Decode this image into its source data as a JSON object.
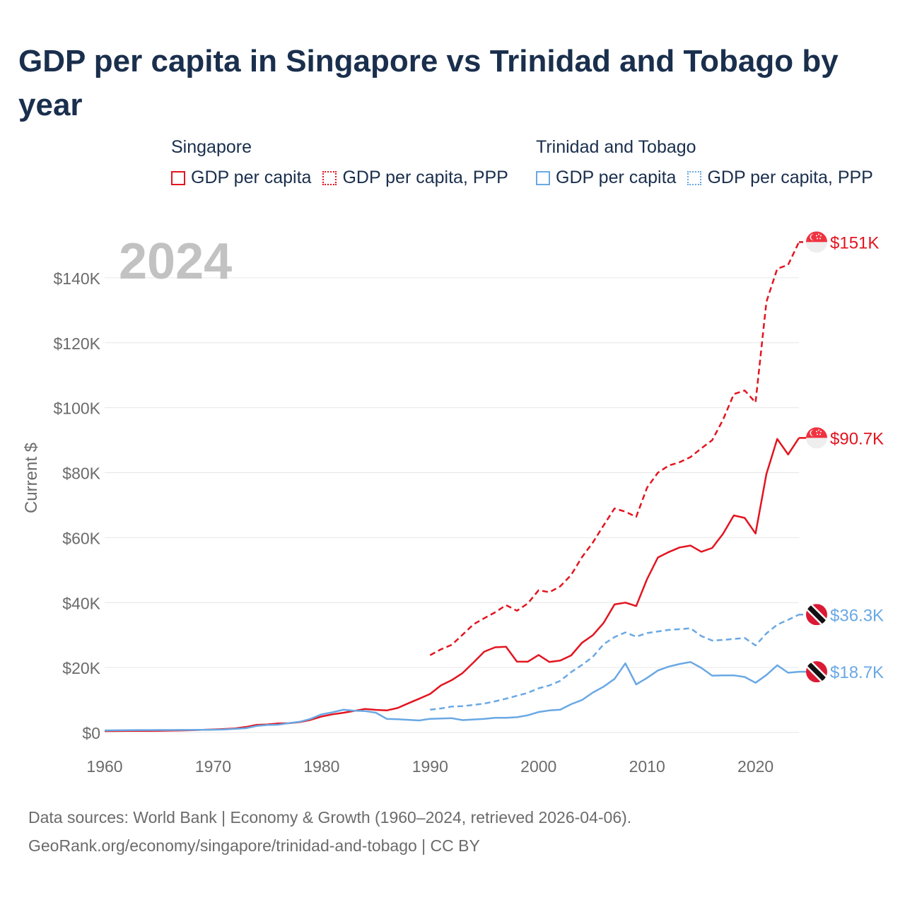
{
  "colors": {
    "singapore": "#e3141f",
    "trinidad": "#6aa8e4",
    "title": "#1a2f4d",
    "axis_text": "#6b6b6b",
    "grid": "#e6e6e6",
    "year_watermark": "#c2c2c2"
  },
  "legend": {
    "groups": [
      {
        "country": "Singapore",
        "series": [
          {
            "label": "GDP per capita",
            "style": "solid"
          },
          {
            "label": "GDP per capita, PPP",
            "style": "dotted"
          }
        ]
      },
      {
        "country": "Trinidad and Tobago",
        "series": [
          {
            "label": "GDP per capita",
            "style": "solid"
          },
          {
            "label": "GDP per capita, PPP",
            "style": "dotted"
          }
        ]
      }
    ]
  },
  "footer": {
    "line1": "Data sources: World Bank | Economy & Growth (1960–2024, retrieved 2026-04-06).",
    "line2": "GeoRank.org/economy/singapore/trinidad-and-tobago | CC BY"
  },
  "chart_data": {
    "type": "line",
    "title": "GDP per capita in Singapore vs Trinidad and Tobago by year",
    "year_label": "2024",
    "ylabel": "Current $",
    "xlabel": "",
    "xlim": [
      1960,
      2024
    ],
    "ylim": [
      0,
      150000
    ],
    "x_ticks": [
      1960,
      1970,
      1980,
      1990,
      2000,
      2010,
      2020
    ],
    "y_ticks": [
      0,
      20000,
      40000,
      60000,
      80000,
      100000,
      120000,
      140000
    ],
    "y_tick_labels": [
      "$0",
      "$20K",
      "$40K",
      "$60K",
      "$80K",
      "$100K",
      "$120K",
      "$140K"
    ],
    "series": [
      {
        "name": "Singapore GDP per capita",
        "country": "Singapore",
        "style": "solid",
        "end_label": "$90.7K",
        "points": [
          [
            1960,
            428
          ],
          [
            1961,
            449
          ],
          [
            1962,
            472
          ],
          [
            1963,
            511
          ],
          [
            1964,
            485
          ],
          [
            1965,
            517
          ],
          [
            1966,
            567
          ],
          [
            1967,
            627
          ],
          [
            1968,
            708
          ],
          [
            1969,
            812
          ],
          [
            1970,
            925
          ],
          [
            1971,
            1071
          ],
          [
            1972,
            1264
          ],
          [
            1973,
            1685
          ],
          [
            1974,
            2342
          ],
          [
            1975,
            2490
          ],
          [
            1976,
            2766
          ],
          [
            1977,
            2846
          ],
          [
            1978,
            3194
          ],
          [
            1979,
            3901
          ],
          [
            1980,
            4928
          ],
          [
            1981,
            5596
          ],
          [
            1982,
            6078
          ],
          [
            1983,
            6633
          ],
          [
            1984,
            7239
          ],
          [
            1985,
            6970
          ],
          [
            1986,
            6800
          ],
          [
            1987,
            7540
          ],
          [
            1988,
            9000
          ],
          [
            1989,
            10400
          ],
          [
            1990,
            11860
          ],
          [
            1991,
            14500
          ],
          [
            1992,
            16140
          ],
          [
            1993,
            18300
          ],
          [
            1994,
            21550
          ],
          [
            1995,
            24900
          ],
          [
            1996,
            26230
          ],
          [
            1997,
            26380
          ],
          [
            1998,
            21830
          ],
          [
            1999,
            21800
          ],
          [
            2000,
            23850
          ],
          [
            2001,
            21700
          ],
          [
            2002,
            22160
          ],
          [
            2003,
            23730
          ],
          [
            2004,
            27600
          ],
          [
            2005,
            29960
          ],
          [
            2006,
            33770
          ],
          [
            2007,
            39430
          ],
          [
            2008,
            40000
          ],
          [
            2009,
            38930
          ],
          [
            2010,
            47240
          ],
          [
            2011,
            53890
          ],
          [
            2012,
            55550
          ],
          [
            2013,
            56970
          ],
          [
            2014,
            57560
          ],
          [
            2015,
            55650
          ],
          [
            2016,
            56830
          ],
          [
            2017,
            61180
          ],
          [
            2018,
            66840
          ],
          [
            2019,
            66070
          ],
          [
            2020,
            61270
          ],
          [
            2021,
            79600
          ],
          [
            2022,
            90400
          ],
          [
            2023,
            85600
          ],
          [
            2024,
            90700
          ]
        ]
      },
      {
        "name": "Singapore GDP per capita, PPP",
        "country": "Singapore",
        "style": "dashed",
        "end_label": "$151K",
        "points": [
          [
            1990,
            23800
          ],
          [
            1991,
            25600
          ],
          [
            1992,
            27000
          ],
          [
            1993,
            30100
          ],
          [
            1994,
            33300
          ],
          [
            1995,
            35200
          ],
          [
            1996,
            37000
          ],
          [
            1997,
            39200
          ],
          [
            1998,
            37500
          ],
          [
            1999,
            39700
          ],
          [
            2000,
            43800
          ],
          [
            2001,
            43200
          ],
          [
            2002,
            45000
          ],
          [
            2003,
            48500
          ],
          [
            2004,
            54000
          ],
          [
            2005,
            58500
          ],
          [
            2006,
            63800
          ],
          [
            2007,
            69000
          ],
          [
            2008,
            68000
          ],
          [
            2009,
            66400
          ],
          [
            2010,
            75400
          ],
          [
            2011,
            80000
          ],
          [
            2012,
            82200
          ],
          [
            2013,
            83200
          ],
          [
            2014,
            84800
          ],
          [
            2015,
            87500
          ],
          [
            2016,
            90000
          ],
          [
            2017,
            96300
          ],
          [
            2018,
            104200
          ],
          [
            2019,
            105300
          ],
          [
            2020,
            101600
          ],
          [
            2021,
            132600
          ],
          [
            2022,
            142800
          ],
          [
            2023,
            144000
          ],
          [
            2024,
            151000
          ]
        ]
      },
      {
        "name": "Trinidad and Tobago GDP per capita",
        "country": "Trinidad and Tobago",
        "style": "solid",
        "end_label": "$18.7K",
        "points": [
          [
            1960,
            631
          ],
          [
            1961,
            678
          ],
          [
            1962,
            703
          ],
          [
            1963,
            735
          ],
          [
            1964,
            746
          ],
          [
            1965,
            757
          ],
          [
            1966,
            763
          ],
          [
            1967,
            790
          ],
          [
            1968,
            784
          ],
          [
            1969,
            824
          ],
          [
            1970,
            858
          ],
          [
            1971,
            904
          ],
          [
            1972,
            1100
          ],
          [
            1973,
            1300
          ],
          [
            1974,
            2000
          ],
          [
            1975,
            2300
          ],
          [
            1976,
            2400
          ],
          [
            1977,
            2900
          ],
          [
            1978,
            3300
          ],
          [
            1979,
            4200
          ],
          [
            1980,
            5600
          ],
          [
            1981,
            6200
          ],
          [
            1982,
            7000
          ],
          [
            1983,
            6700
          ],
          [
            1984,
            6600
          ],
          [
            1985,
            6100
          ],
          [
            1986,
            4200
          ],
          [
            1987,
            4100
          ],
          [
            1988,
            3900
          ],
          [
            1989,
            3700
          ],
          [
            1990,
            4200
          ],
          [
            1991,
            4300
          ],
          [
            1992,
            4400
          ],
          [
            1993,
            3800
          ],
          [
            1994,
            4000
          ],
          [
            1995,
            4200
          ],
          [
            1996,
            4500
          ],
          [
            1997,
            4500
          ],
          [
            1998,
            4700
          ],
          [
            1999,
            5300
          ],
          [
            2000,
            6300
          ],
          [
            2001,
            6800
          ],
          [
            2002,
            7000
          ],
          [
            2003,
            8700
          ],
          [
            2004,
            10000
          ],
          [
            2005,
            12300
          ],
          [
            2006,
            14100
          ],
          [
            2007,
            16500
          ],
          [
            2008,
            21300
          ],
          [
            2009,
            14800
          ],
          [
            2010,
            16800
          ],
          [
            2011,
            19100
          ],
          [
            2012,
            20300
          ],
          [
            2013,
            21100
          ],
          [
            2014,
            21700
          ],
          [
            2015,
            19900
          ],
          [
            2016,
            17500
          ],
          [
            2017,
            17600
          ],
          [
            2018,
            17600
          ],
          [
            2019,
            17100
          ],
          [
            2020,
            15300
          ],
          [
            2021,
            17700
          ],
          [
            2022,
            20700
          ],
          [
            2023,
            18400
          ],
          [
            2024,
            18700
          ]
        ]
      },
      {
        "name": "Trinidad and Tobago GDP per capita, PPP",
        "country": "Trinidad and Tobago",
        "style": "dashed",
        "end_label": "$36.3K",
        "points": [
          [
            1990,
            7000
          ],
          [
            1991,
            7400
          ],
          [
            1992,
            8000
          ],
          [
            1993,
            8100
          ],
          [
            1994,
            8500
          ],
          [
            1995,
            8900
          ],
          [
            1996,
            9600
          ],
          [
            1997,
            10400
          ],
          [
            1998,
            11300
          ],
          [
            1999,
            12200
          ],
          [
            2000,
            13600
          ],
          [
            2001,
            14500
          ],
          [
            2002,
            15900
          ],
          [
            2003,
            18600
          ],
          [
            2004,
            20800
          ],
          [
            2005,
            23300
          ],
          [
            2006,
            27200
          ],
          [
            2007,
            29400
          ],
          [
            2008,
            30800
          ],
          [
            2009,
            29500
          ],
          [
            2010,
            30600
          ],
          [
            2011,
            31100
          ],
          [
            2012,
            31600
          ],
          [
            2013,
            31800
          ],
          [
            2014,
            32100
          ],
          [
            2015,
            29700
          ],
          [
            2016,
            28300
          ],
          [
            2017,
            28500
          ],
          [
            2018,
            28800
          ],
          [
            2019,
            29100
          ],
          [
            2020,
            26800
          ],
          [
            2021,
            30500
          ],
          [
            2022,
            33200
          ],
          [
            2023,
            34700
          ],
          [
            2024,
            36300
          ]
        ]
      }
    ]
  }
}
